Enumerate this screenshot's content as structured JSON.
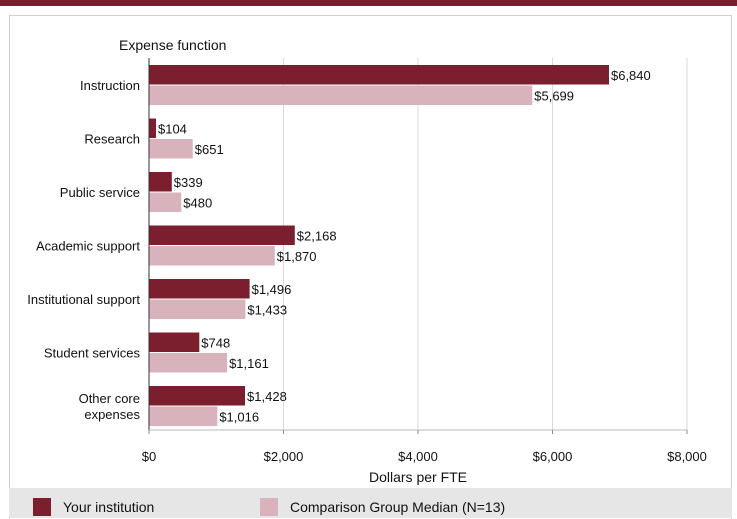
{
  "chart_data": {
    "type": "bar",
    "orientation": "horizontal",
    "category_axis_title": "Expense function",
    "xlabel": "Dollars per FTE",
    "xlim": [
      0,
      8000
    ],
    "x_ticks": [
      0,
      2000,
      4000,
      6000,
      8000
    ],
    "x_tick_labels": [
      "$0",
      "$2,000",
      "$4,000",
      "$6,000",
      "$8,000"
    ],
    "grid": true,
    "legend_position": "bottom",
    "categories": [
      [
        "Instruction"
      ],
      [
        "Research"
      ],
      [
        "Public service"
      ],
      [
        "Academic support"
      ],
      [
        "Institutional support"
      ],
      [
        "Student services"
      ],
      [
        "Other core",
        "expenses"
      ]
    ],
    "series": [
      {
        "name": "Your institution",
        "color": "#7b1f2e",
        "values": [
          6840,
          104,
          339,
          2168,
          1496,
          748,
          1428
        ],
        "labels": [
          "$6,840",
          "$104",
          "$339",
          "$2,168",
          "$1,496",
          "$748",
          "$1,428"
        ]
      },
      {
        "name": "Comparison Group Median (N=13)",
        "color": "#d9b3bc",
        "values": [
          5699,
          651,
          480,
          1870,
          1433,
          1161,
          1016
        ],
        "labels": [
          "$5,699",
          "$651",
          "$480",
          "$1,870",
          "$1,433",
          "$1,161",
          "$1,016"
        ]
      }
    ]
  }
}
